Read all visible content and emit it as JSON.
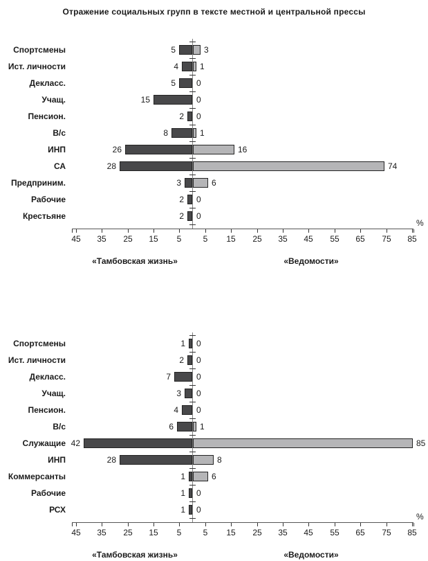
{
  "title": "Отражение социальных групп в тексте местной и центральной прессы",
  "unit_label": "%",
  "legend": {
    "left": "«Тамбовская жизнь»",
    "right": "«Ведомости»"
  },
  "colors": {
    "left_bar": "#48484a",
    "right_bar": "#b5b5b7",
    "bar_border": "#232323",
    "axis_line": "#555555",
    "center_line": "#808080",
    "text": "#1a1a1a"
  },
  "chart_data": [
    {
      "type": "bar",
      "orientation": "horizontal-diverging",
      "title": "Отражение социальных групп в тексте местной и центральной прессы",
      "categories": [
        "Спортсмены",
        "Ист. личности",
        "Декласс.",
        "Учащ.",
        "Пенсион.",
        "В/с",
        "ИНП",
        "СА",
        "Предприним.",
        "Рабочие",
        "Крестьяне"
      ],
      "series": [
        {
          "name": "«Тамбовская жизнь»",
          "side": "left",
          "values": [
            5,
            4,
            5,
            15,
            2,
            8,
            26,
            28,
            3,
            2,
            2
          ]
        },
        {
          "name": "«Ведомости»",
          "side": "right",
          "values": [
            3,
            1,
            0,
            0,
            0,
            1,
            16,
            74,
            6,
            0,
            0
          ]
        }
      ],
      "xlabel": "%",
      "x_ticks_left": [
        45,
        35,
        25,
        15,
        5
      ],
      "x_ticks_right": [
        5,
        15,
        25,
        35,
        45,
        55,
        65,
        75,
        85
      ],
      "xlim": [
        -46,
        86
      ],
      "grid": false,
      "legend_position": "below-axis",
      "data_labels": "outside-end"
    },
    {
      "type": "bar",
      "orientation": "horizontal-diverging",
      "title": "",
      "categories": [
        "Спортсмены",
        "Ист. личности",
        "Декласс.",
        "Учащ.",
        "Пенсион.",
        "В/с",
        "Служащие",
        "ИНП",
        "Коммерсанты",
        "Рабочие",
        "РСХ"
      ],
      "series": [
        {
          "name": "«Тамбовская жизнь»",
          "side": "left",
          "values": [
            1,
            2,
            7,
            3,
            4,
            6,
            42,
            28,
            1,
            1,
            1
          ]
        },
        {
          "name": "«Ведомости»",
          "side": "right",
          "values": [
            0,
            0,
            0,
            0,
            0,
            1,
            85,
            8,
            6,
            0,
            0
          ]
        }
      ],
      "xlabel": "%",
      "x_ticks_left": [
        45,
        35,
        25,
        15,
        5
      ],
      "x_ticks_right": [
        5,
        15,
        25,
        35,
        45,
        55,
        65,
        75,
        85
      ],
      "xlim": [
        -46,
        86
      ],
      "grid": false,
      "legend_position": "below-axis",
      "data_labels": "outside-end"
    }
  ]
}
